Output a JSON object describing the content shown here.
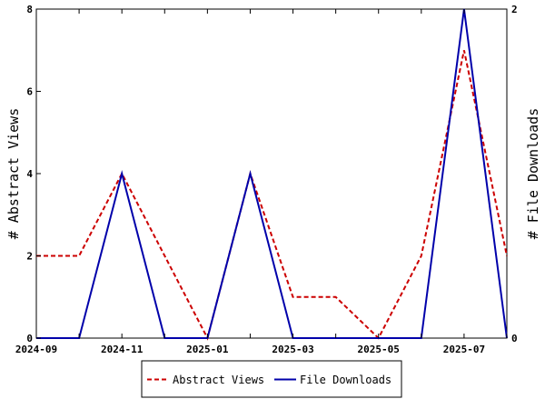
{
  "chart_data": {
    "type": "line",
    "x": [
      "2024-09",
      "2024-10",
      "2024-11",
      "2024-12",
      "2025-01",
      "2025-02",
      "2025-03",
      "2025-04",
      "2025-05",
      "2025-06",
      "2025-07",
      "2025-08"
    ],
    "x_tick_labels": [
      "2024-09",
      "2024-11",
      "2025-01",
      "2025-03",
      "2025-05",
      "2025-07"
    ],
    "y_left": {
      "label": "# Abstract Views",
      "range": [
        0,
        8
      ],
      "ticks": [
        "0",
        "2",
        "4",
        "6",
        "8"
      ]
    },
    "y_right": {
      "label": "# File Downloads",
      "range": [
        0,
        2
      ],
      "ticks": [
        "0",
        "2"
      ]
    },
    "series": [
      {
        "name": "Abstract Views",
        "axis": "left",
        "color": "#cc0000",
        "style": "dashed",
        "values": [
          2,
          2,
          4,
          2,
          0,
          4,
          1,
          1,
          0,
          2,
          7,
          2
        ]
      },
      {
        "name": "File Downloads",
        "axis": "right",
        "color": "#0000aa",
        "style": "solid",
        "values": [
          0,
          0,
          1,
          0,
          0,
          1,
          0,
          0,
          0,
          0,
          2,
          0
        ]
      }
    ],
    "legend": {
      "position": "bottom"
    },
    "grid": false
  }
}
